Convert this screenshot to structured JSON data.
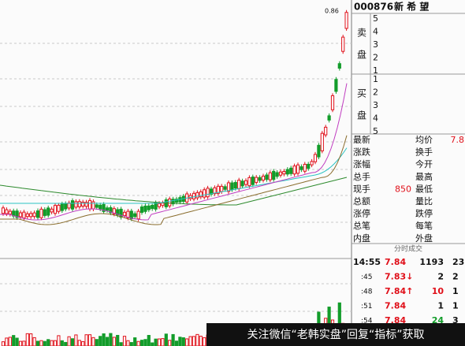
{
  "header": {
    "code": "000876",
    "name": "新 希 望"
  },
  "peak_label": "0.86",
  "sell": {
    "label": [
      "卖",
      "盘"
    ],
    "levels": [
      "5",
      "4",
      "3",
      "2",
      "1"
    ]
  },
  "buy": {
    "label": [
      "买",
      "盘"
    ],
    "levels": [
      "1",
      "2",
      "3",
      "4",
      "5"
    ]
  },
  "quote": {
    "rows": [
      {
        "left": "最新",
        "right": "均价",
        "right_value": "7.8"
      },
      {
        "left": "涨跌",
        "right": "换手"
      },
      {
        "left": "涨幅",
        "right": "今开"
      },
      {
        "left": "总手",
        "right": "最高"
      },
      {
        "left": "现手",
        "left_value": "850",
        "right": "最低"
      },
      {
        "left": "总额",
        "right": "量比"
      },
      {
        "left": "涨停",
        "right": "跌停"
      },
      {
        "left": "总笔",
        "right": "每笔"
      },
      {
        "left": "内盘",
        "right": "外盘"
      }
    ]
  },
  "trades": {
    "title": "分时成交",
    "rows": [
      [
        "14:55",
        "7.84",
        "1193",
        "23"
      ],
      [
        ":45",
        "7.83↓",
        "2",
        "2"
      ],
      [
        ":48",
        "7.84↑",
        "10",
        "1"
      ],
      [
        ":51",
        "7.84",
        "1",
        "1"
      ],
      [
        ":54",
        "7.84",
        "24",
        "3"
      ]
    ]
  },
  "banner": "关注微信“老韩实盘”回复“指标”获取"
}
